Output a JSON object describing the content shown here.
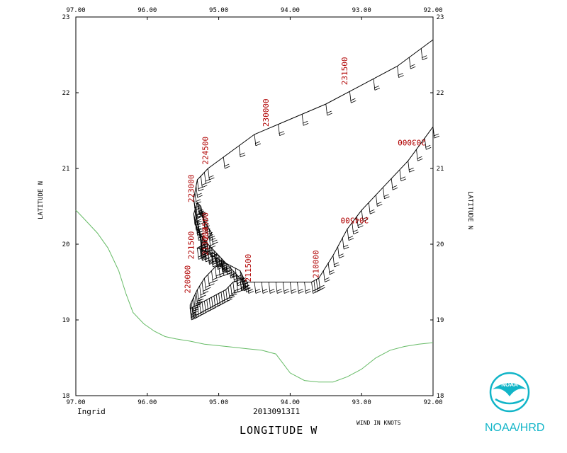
{
  "chart_data": {
    "type": "line",
    "storm_name": "Ingrid",
    "date_id": "20130913I1",
    "xlabel": "LONGITUDE  W",
    "ylabel": "LATITUDE  N",
    "ylabel_right": "LATITUDE  N",
    "wind_units_label": "WIND IN KNOTS",
    "xlim": [
      97.0,
      92.0
    ],
    "ylim": [
      18,
      23
    ],
    "x_ticks": [
      "97.00",
      "96.00",
      "95.00",
      "94.00",
      "93.00",
      "92.00"
    ],
    "y_ticks": [
      "18",
      "19",
      "20",
      "21",
      "22",
      "23"
    ],
    "grid": false,
    "flight_track": {
      "lon": [
        92.0,
        92.35,
        92.7,
        93.0,
        93.2,
        93.4,
        93.6,
        93.7,
        94.0,
        94.3,
        94.6,
        94.7,
        94.85,
        95.0,
        95.1,
        95.2,
        95.3,
        95.35,
        95.3,
        95.25,
        95.2,
        95.1,
        95.2,
        95.3,
        95.15,
        95.0,
        94.9,
        95.05,
        95.2,
        95.3,
        95.35,
        95.4,
        95.4,
        95.3,
        95.2,
        95.1,
        95.0,
        94.9,
        94.8,
        94.65,
        94.7,
        94.9,
        95.1,
        95.25,
        95.25,
        95.3,
        95.35,
        95.3,
        95.15,
        94.5,
        93.5,
        92.5,
        92.0
      ],
      "lat": [
        21.55,
        21.1,
        20.75,
        20.45,
        20.2,
        19.85,
        19.55,
        19.5,
        19.5,
        19.5,
        19.5,
        19.55,
        19.7,
        19.85,
        19.95,
        20.05,
        20.2,
        20.4,
        20.55,
        20.5,
        20.3,
        20.15,
        20.0,
        19.95,
        19.9,
        19.85,
        19.75,
        19.7,
        19.55,
        19.4,
        19.3,
        19.2,
        19.15,
        19.2,
        19.25,
        19.3,
        19.35,
        19.4,
        19.5,
        19.55,
        19.65,
        19.75,
        19.85,
        19.95,
        20.1,
        20.3,
        20.6,
        20.85,
        21.0,
        21.45,
        21.85,
        22.35,
        22.7
      ]
    },
    "time_labels": [
      {
        "text": "203000",
        "lon": 92.1,
        "lat": 21.38,
        "rot": 180
      },
      {
        "text": "204500",
        "lon": 92.9,
        "lat": 20.35,
        "rot": 180
      },
      {
        "text": "210000",
        "lon": 93.6,
        "lat": 19.55,
        "rot": -90
      },
      {
        "text": "211500",
        "lon": 94.55,
        "lat": 19.5,
        "rot": -90
      },
      {
        "text": "213000",
        "lon": 95.15,
        "lat": 19.85,
        "rot": -90
      },
      {
        "text": "214500",
        "lon": 95.15,
        "lat": 20.05,
        "rot": -90
      },
      {
        "text": "221500",
        "lon": 95.35,
        "lat": 19.8,
        "rot": -90
      },
      {
        "text": "223000",
        "lon": 95.35,
        "lat": 20.55,
        "rot": -90
      },
      {
        "text": "224500",
        "lon": 95.15,
        "lat": 21.05,
        "rot": -90
      },
      {
        "text": "230000",
        "lon": 94.3,
        "lat": 21.55,
        "rot": -90
      },
      {
        "text": "231500",
        "lon": 93.2,
        "lat": 22.1,
        "rot": -90
      },
      {
        "text": "220000",
        "lon": 95.4,
        "lat": 19.35,
        "rot": -90
      }
    ],
    "coastline": {
      "lon": [
        97.0,
        96.9,
        96.7,
        96.55,
        96.4,
        96.3,
        96.2,
        96.05,
        95.9,
        95.75,
        95.6,
        95.4,
        95.2,
        95.0,
        94.8,
        94.6,
        94.4,
        94.2,
        94.0,
        93.8,
        93.6,
        93.4,
        93.2,
        93.0,
        92.8,
        92.6,
        92.4,
        92.2,
        92.0
      ],
      "lat": [
        20.45,
        20.35,
        20.15,
        19.95,
        19.65,
        19.35,
        19.1,
        18.95,
        18.85,
        18.78,
        18.75,
        18.72,
        18.68,
        18.66,
        18.64,
        18.62,
        18.6,
        18.55,
        18.3,
        18.2,
        18.18,
        18.18,
        18.25,
        18.35,
        18.5,
        18.6,
        18.65,
        18.68,
        18.7
      ]
    }
  },
  "branding": {
    "agency": "NOAA/HRD",
    "logo_text": "NOAA",
    "brand_color": "#12b5c8",
    "track_color": "#000000",
    "label_color": "#b00000",
    "coast_color": "#66bb66"
  }
}
